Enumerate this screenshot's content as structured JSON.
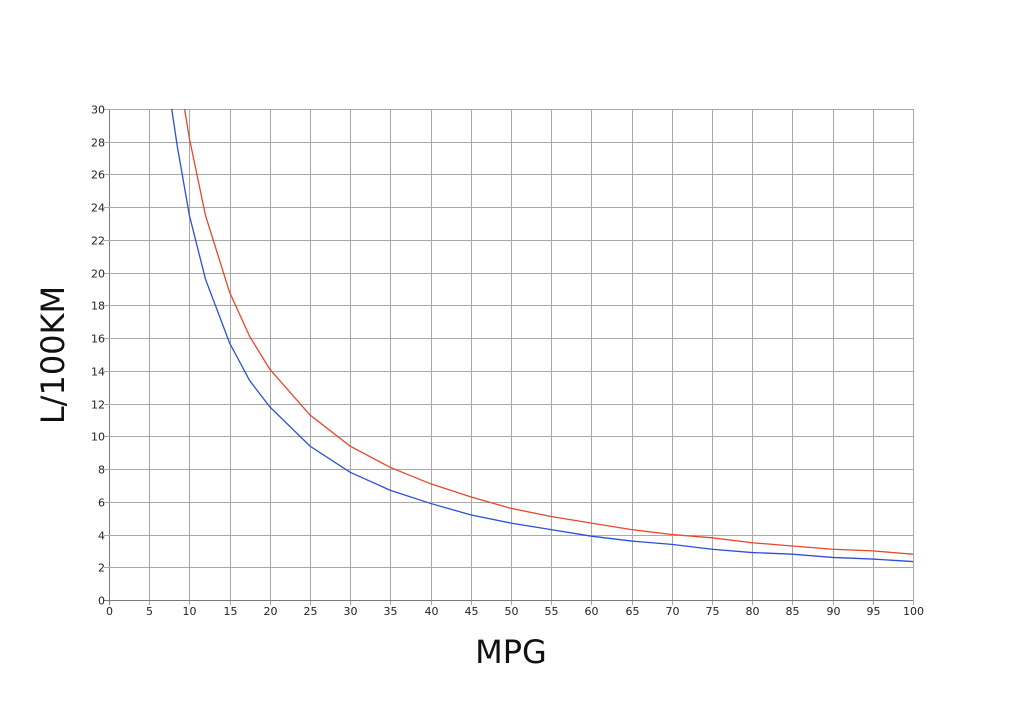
{
  "chart_data": {
    "type": "line",
    "title": "",
    "xlabel": "MPG",
    "ylabel": "L/100KM",
    "xlim": [
      0,
      100
    ],
    "ylim": [
      0,
      30
    ],
    "x_ticks": [
      "0",
      "5",
      "10",
      "15",
      "20",
      "25",
      "30",
      "35",
      "40",
      "45",
      "50",
      "55",
      "60",
      "65",
      "70",
      "75",
      "80",
      "85",
      "90",
      "95",
      "100"
    ],
    "y_ticks": [
      "0",
      "2",
      "4",
      "6",
      "8",
      "10",
      "12",
      "14",
      "16",
      "18",
      "20",
      "22",
      "24",
      "26",
      "28",
      "30"
    ],
    "grid": true,
    "legend": "none",
    "series": [
      {
        "color": "#e8462a",
        "x": [
          9.4,
          10,
          12,
          15,
          17.5,
          20,
          25,
          30,
          35,
          40,
          45,
          50,
          55,
          60,
          65,
          70,
          75,
          80,
          85,
          90,
          95,
          100
        ],
        "y": [
          30,
          28.2,
          23.5,
          18.8,
          16.1,
          14.1,
          11.3,
          9.4,
          8.1,
          7.1,
          6.3,
          5.6,
          5.1,
          4.7,
          4.3,
          4.0,
          3.8,
          3.5,
          3.3,
          3.1,
          3.0,
          2.8
        ]
      },
      {
        "color": "#2b4fd6",
        "x": [
          7.8,
          8.5,
          10,
          12,
          15,
          17.5,
          20,
          25,
          30,
          35,
          40,
          45,
          50,
          55,
          60,
          65,
          70,
          75,
          80,
          85,
          90,
          95,
          100
        ],
        "y": [
          30,
          27.7,
          23.5,
          19.6,
          15.7,
          13.4,
          11.8,
          9.4,
          7.8,
          6.7,
          5.9,
          5.2,
          4.7,
          4.3,
          3.9,
          3.6,
          3.4,
          3.1,
          2.9,
          2.8,
          2.6,
          2.5,
          2.35
        ]
      }
    ]
  }
}
